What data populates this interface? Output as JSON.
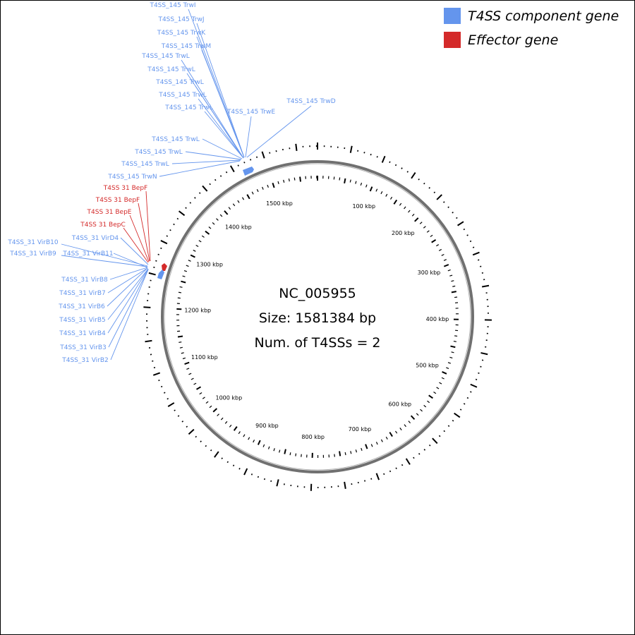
{
  "genome": {
    "accession": "NC_005955",
    "size_text": "Size: 1581384 bp",
    "t4ss_count_text": "Num. of T4SSs = 2",
    "size_bp": 1581384
  },
  "legend": [
    {
      "label": "T4SS component gene",
      "color": "#6495ed"
    },
    {
      "label": "Effector gene",
      "color": "#d42a2a"
    }
  ],
  "colors": {
    "component": "#6495ed",
    "effector": "#d42a2a",
    "backbone": "#808080"
  },
  "scale_ticks": [
    {
      "label": "100 kbp",
      "kbp": 100
    },
    {
      "label": "200 kbp",
      "kbp": 200
    },
    {
      "label": "300 kbp",
      "kbp": 300
    },
    {
      "label": "400 kbp",
      "kbp": 400
    },
    {
      "label": "500 kbp",
      "kbp": 500
    },
    {
      "label": "600 kbp",
      "kbp": 600
    },
    {
      "label": "700 kbp",
      "kbp": 700
    },
    {
      "label": "800 kbp",
      "kbp": 800
    },
    {
      "label": "900 kbp",
      "kbp": 900
    },
    {
      "label": "1000 kbp",
      "kbp": 1000
    },
    {
      "label": "1100 kbp",
      "kbp": 1100
    },
    {
      "label": "1200 kbp",
      "kbp": 1200
    },
    {
      "label": "1300 kbp",
      "kbp": 1300
    },
    {
      "label": "1400 kbp",
      "kbp": 1400
    },
    {
      "label": "1500 kbp",
      "kbp": 1500
    }
  ],
  "genes": [
    {
      "label": "T4SS_145 TrwI",
      "type": "component",
      "cluster": "T4SS_145"
    },
    {
      "label": "T4SS_145 TrwJ",
      "type": "component",
      "cluster": "T4SS_145"
    },
    {
      "label": "T4SS_145 TrwK",
      "type": "component",
      "cluster": "T4SS_145"
    },
    {
      "label": "T4SS_145 TrwM",
      "type": "component",
      "cluster": "T4SS_145"
    },
    {
      "label": "T4SS_145 TrwL",
      "type": "component",
      "cluster": "T4SS_145"
    },
    {
      "label": "T4SS_145 TrwL",
      "type": "component",
      "cluster": "T4SS_145"
    },
    {
      "label": "T4SS_145 TrwL",
      "type": "component",
      "cluster": "T4SS_145"
    },
    {
      "label": "T4SS_145 TrwL",
      "type": "component",
      "cluster": "T4SS_145"
    },
    {
      "label": "T4SS_145 TrwL",
      "type": "component",
      "cluster": "T4SS_145"
    },
    {
      "label": "T4SS_145 TrwE",
      "type": "component",
      "cluster": "T4SS_145"
    },
    {
      "label": "T4SS_145 TrwD",
      "type": "component",
      "cluster": "T4SS_145"
    },
    {
      "label": "T4SS_145 TrwL",
      "type": "component",
      "cluster": "T4SS_145"
    },
    {
      "label": "T4SS_145 TrwL",
      "type": "component",
      "cluster": "T4SS_145"
    },
    {
      "label": "T4SS_145 TrwL",
      "type": "component",
      "cluster": "T4SS_145"
    },
    {
      "label": "T4SS_145 TrwN",
      "type": "component",
      "cluster": "T4SS_145"
    },
    {
      "label": "T4SS 31 BepF",
      "type": "effector",
      "cluster": "T4SS_31"
    },
    {
      "label": "T4SS 31 BepF",
      "type": "effector",
      "cluster": "T4SS_31"
    },
    {
      "label": "T4SS 31 BepE",
      "type": "effector",
      "cluster": "T4SS_31"
    },
    {
      "label": "T4SS 31 BepC",
      "type": "effector",
      "cluster": "T4SS_31"
    },
    {
      "label": "T4SS_31 VirD4",
      "type": "component",
      "cluster": "T4SS_31"
    },
    {
      "label": "T4SS_31 VirB10",
      "type": "component",
      "cluster": "T4SS_31"
    },
    {
      "label": "T4SS_31 VirB9",
      "type": "component",
      "cluster": "T4SS_31"
    },
    {
      "label": "T4SS_31 VirB11",
      "type": "component",
      "cluster": "T4SS_31"
    },
    {
      "label": "T4SS_31 VirB8",
      "type": "component",
      "cluster": "T4SS_31"
    },
    {
      "label": "T4SS_31 VirB7",
      "type": "component",
      "cluster": "T4SS_31"
    },
    {
      "label": "T4SS_31 VirB6",
      "type": "component",
      "cluster": "T4SS_31"
    },
    {
      "label": "T4SS_31 VirB5",
      "type": "component",
      "cluster": "T4SS_31"
    },
    {
      "label": "T4SS_31 VirB4",
      "type": "component",
      "cluster": "T4SS_31"
    },
    {
      "label": "T4SS_31 VirB3",
      "type": "component",
      "cluster": "T4SS_31"
    },
    {
      "label": "T4SS_31 VirB2",
      "type": "component",
      "cluster": "T4SS_31"
    }
  ]
}
